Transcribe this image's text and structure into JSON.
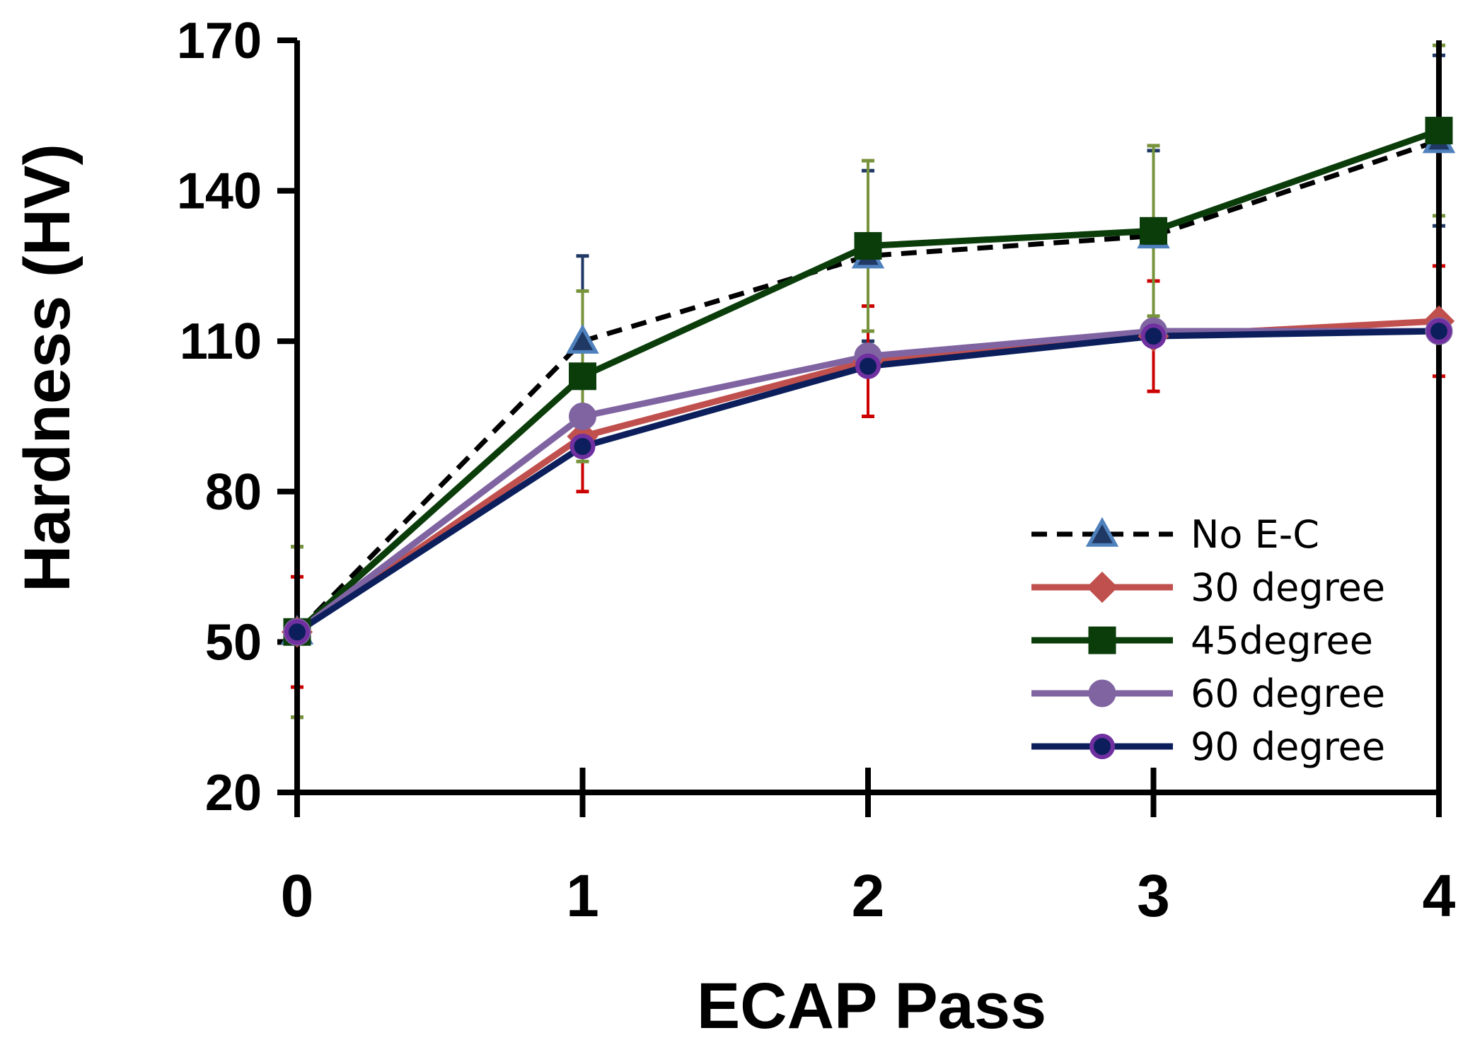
{
  "chart_data": {
    "type": "line",
    "title": "",
    "xlabel": "ECAP Pass",
    "ylabel": "Hardness (HV)",
    "x": [
      0,
      1,
      2,
      3,
      4
    ],
    "xticks": [
      "0",
      "1",
      "2",
      "3",
      "4"
    ],
    "xlim": [
      0,
      4
    ],
    "ylim": [
      20,
      170
    ],
    "yticks": [
      "20",
      "50",
      "80",
      "110",
      "140",
      "170"
    ],
    "grid": false,
    "legend_position": "lower-right",
    "series": [
      {
        "name": "No E-C",
        "values": [
          52,
          110,
          127,
          131,
          150
        ],
        "errors": [
          17,
          17,
          17,
          17,
          17
        ],
        "color": "#000000",
        "error_color": "#1F3864",
        "marker": "triangle",
        "marker_fill": "#1F3864",
        "marker_edge": "#4F81BD",
        "dash": true
      },
      {
        "name": "30 degree",
        "values": [
          52,
          91,
          106,
          111,
          114
        ],
        "errors": [
          11,
          11,
          11,
          11,
          11
        ],
        "color": "#C0504D",
        "error_color": "#CC0000",
        "marker": "diamond",
        "marker_fill": "#C0504D",
        "marker_edge": "#C0504D",
        "dash": false
      },
      {
        "name": "45degree",
        "values": [
          52,
          103,
          129,
          132,
          152
        ],
        "errors": [
          17,
          17,
          17,
          17,
          17
        ],
        "color": "#0B3D0B",
        "error_color": "#77933C",
        "marker": "square",
        "marker_fill": "#0B3D0B",
        "marker_edge": "#0B3D0B",
        "dash": false
      },
      {
        "name": "60 degree",
        "values": [
          52,
          95,
          107,
          112,
          112
        ],
        "errors": [
          0,
          0,
          0,
          0,
          0
        ],
        "color": "#8064A2",
        "error_color": "#8064A2",
        "marker": "circle",
        "marker_fill": "#8064A2",
        "marker_edge": "#8064A2",
        "dash": false
      },
      {
        "name": "90 degree",
        "values": [
          52,
          89,
          105,
          111,
          112
        ],
        "errors": [
          0,
          0,
          0,
          0,
          0
        ],
        "color": "#0C1F5C",
        "error_color": "#0C1F5C",
        "marker": "circle",
        "marker_fill": "#0C1F5C",
        "marker_edge": "#7030A0",
        "dash": false
      }
    ]
  }
}
